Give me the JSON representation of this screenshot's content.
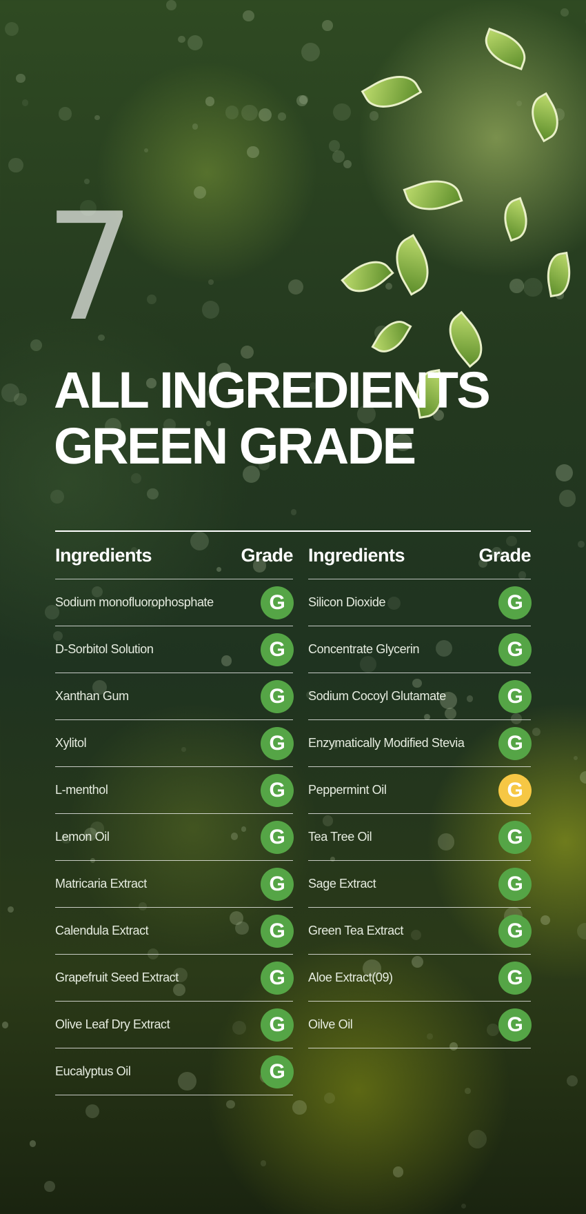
{
  "number": "7",
  "title": [
    "ALL INGREDIENTS",
    "GREEN GRADE"
  ],
  "colors": {
    "green_grade": "#55a546",
    "yellow_grade": "#f6c744"
  },
  "table": {
    "header": {
      "ingredients": "Ingredients",
      "grade": "Grade"
    },
    "left": [
      {
        "name": "Sodium monofluorophosphate",
        "grade": "G",
        "color": "green"
      },
      {
        "name": "D-Sorbitol Solution",
        "grade": "G",
        "color": "green"
      },
      {
        "name": "Xanthan Gum",
        "grade": "G",
        "color": "green"
      },
      {
        "name": "Xylitol",
        "grade": "G",
        "color": "green"
      },
      {
        "name": "L-menthol",
        "grade": "G",
        "color": "green"
      },
      {
        "name": "Lemon Oil",
        "grade": "G",
        "color": "green"
      },
      {
        "name": "Matricaria Extract",
        "grade": "G",
        "color": "green"
      },
      {
        "name": "Calendula Extract",
        "grade": "G",
        "color": "green"
      },
      {
        "name": "Grapefruit Seed Extract",
        "grade": "G",
        "color": "green"
      },
      {
        "name": "Olive Leaf Dry Extract",
        "grade": "G",
        "color": "green"
      },
      {
        "name": "Eucalyptus Oil",
        "grade": "G",
        "color": "green"
      }
    ],
    "right": [
      {
        "name": "Silicon Dioxide",
        "grade": "G",
        "color": "green"
      },
      {
        "name": "Concentrate Glycerin",
        "grade": "G",
        "color": "green"
      },
      {
        "name": "Sodium Cocoyl Glutamate",
        "grade": "G",
        "color": "green"
      },
      {
        "name": "Enzymatically Modified Stevia",
        "grade": "G",
        "color": "green"
      },
      {
        "name": "Peppermint Oil",
        "grade": "G",
        "color": "yellow"
      },
      {
        "name": "Tea Tree Oil",
        "grade": "G",
        "color": "green"
      },
      {
        "name": "Sage Extract",
        "grade": "G",
        "color": "green"
      },
      {
        "name": "Green Tea Extract",
        "grade": "G",
        "color": "green"
      },
      {
        "name": "Aloe Extract(09)",
        "grade": "G",
        "color": "green"
      },
      {
        "name": "Oilve Oil",
        "grade": "G",
        "color": "green"
      }
    ]
  }
}
